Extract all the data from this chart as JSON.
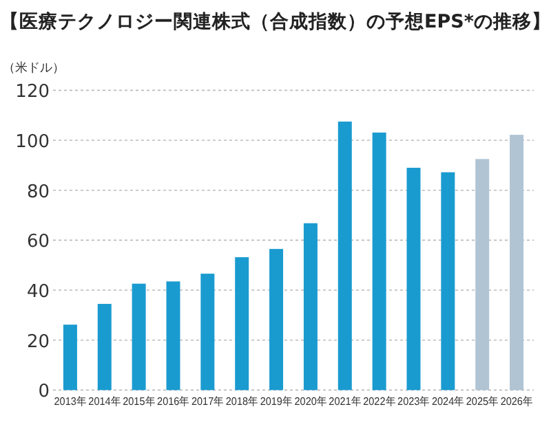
{
  "chart_data": {
    "type": "bar",
    "title": "【医療テクノロジー関連株式（合成指数）の予想EPS*の推移】",
    "ylabel": "（米ドル）",
    "categories": [
      "2013年",
      "2014年",
      "2015年",
      "2016年",
      "2017年",
      "2018年",
      "2019年",
      "2020年",
      "2021年",
      "2022年",
      "2023年",
      "2024年",
      "2025年",
      "2026年"
    ],
    "values": [
      26.2,
      34.5,
      42.6,
      43.5,
      46.6,
      53.2,
      56.5,
      66.8,
      107.5,
      103.1,
      89.0,
      87.2,
      92.5,
      102.2
    ],
    "colors": [
      "#1a9bd0",
      "#1a9bd0",
      "#1a9bd0",
      "#1a9bd0",
      "#1a9bd0",
      "#1a9bd0",
      "#1a9bd0",
      "#1a9bd0",
      "#1a9bd0",
      "#1a9bd0",
      "#1a9bd0",
      "#1a9bd0",
      "#b0c4d4",
      "#b0c4d4"
    ],
    "ylim": [
      0,
      120
    ],
    "yticks": [
      0,
      20,
      40,
      60,
      80,
      100,
      120
    ],
    "grid": "y"
  }
}
